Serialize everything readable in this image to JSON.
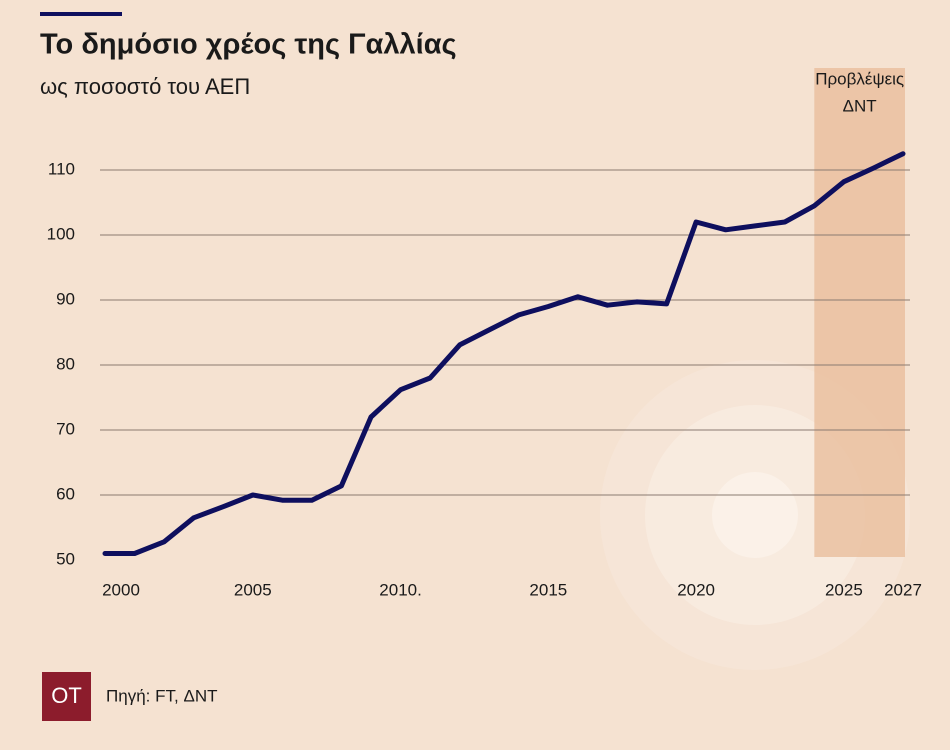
{
  "chart_data": {
    "type": "line",
    "title": "Το δημόσιο χρέος της Γαλλίας",
    "subtitle": "ως ποσοστό του ΑΕΠ",
    "source": "Πηγή: FT, ΔΝΤ",
    "logo": "OT",
    "x": [
      2000,
      2001,
      2002,
      2003,
      2004,
      2005,
      2006,
      2007,
      2008,
      2009,
      2010,
      2011,
      2012,
      2013,
      2014,
      2015,
      2016,
      2017,
      2018,
      2019,
      2020,
      2021,
      2022,
      2023,
      2024,
      2025,
      2026,
      2027
    ],
    "series": [
      {
        "name": "Δημόσιο χρέος",
        "color": "#0e0f5e",
        "values": [
          51,
          51,
          52.8,
          56.5,
          58.2,
          60,
          59.2,
          59.2,
          61.4,
          72,
          76.2,
          78,
          83.1,
          85.4,
          87.7,
          89,
          90.5,
          89.2,
          89.7,
          89.4,
          102,
          100.8,
          101.4,
          102,
          104.5,
          108.2,
          110.3,
          112.5
        ]
      }
    ],
    "xlim": [
      2000,
      2027
    ],
    "xticks": [
      2000,
      2005,
      {
        "value": 2010,
        "label": "2010."
      },
      2015,
      2020,
      2025,
      2027
    ],
    "ylim": [
      50,
      110
    ],
    "yticks": [
      50,
      60,
      70,
      80,
      90,
      100,
      110
    ],
    "grid": true,
    "shaded_region": {
      "from": 2024,
      "to": 2027,
      "label": [
        "Προβλέψεις",
        "ΔΝΤ"
      ],
      "color": "#e8bb98"
    }
  }
}
